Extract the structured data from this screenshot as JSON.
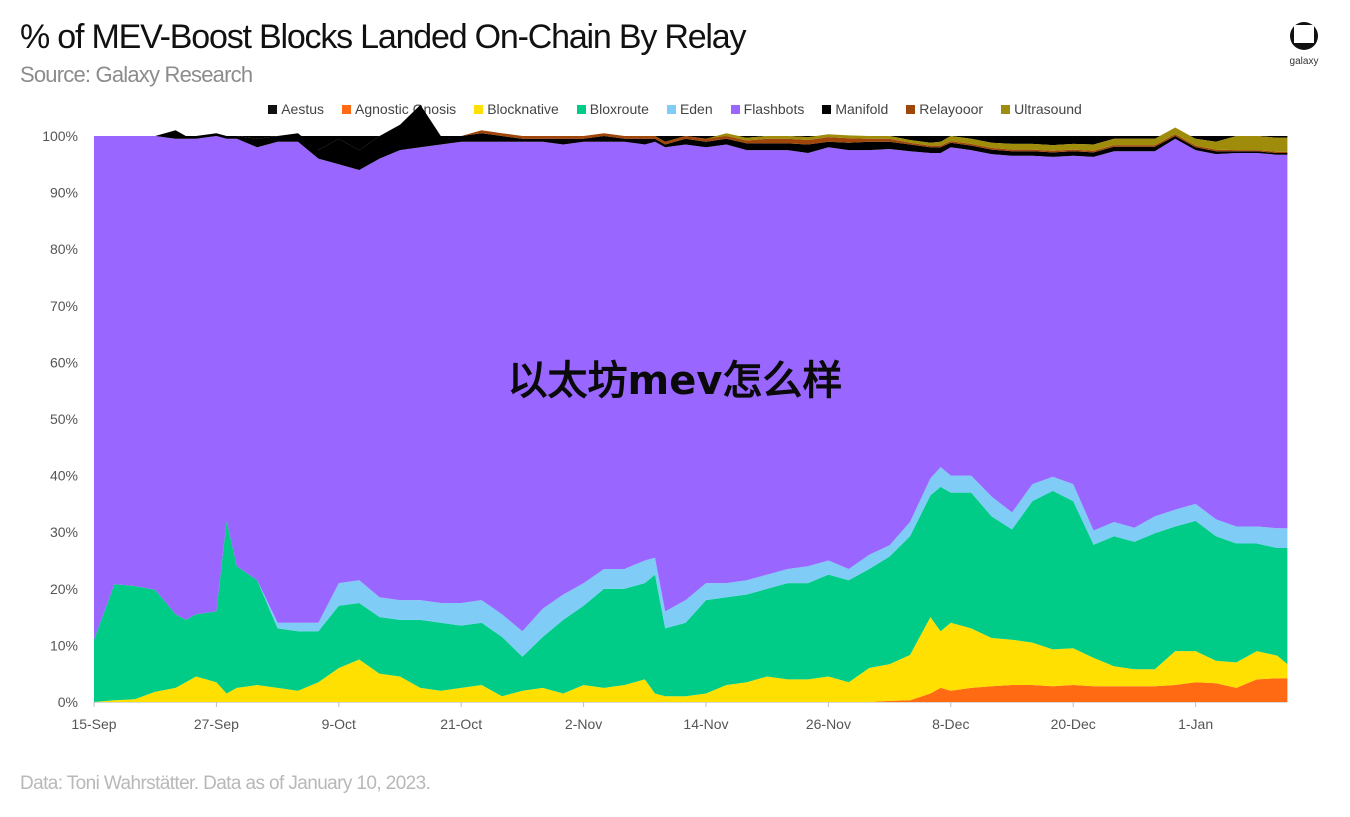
{
  "header": {
    "title": "% of MEV-Boost Blocks Landed On-Chain By Relay",
    "subtitle": "Source: Galaxy Research",
    "logo_text": "galaxy"
  },
  "footer": {
    "note": "Data:  Toni Wahrstätter. Data as of January 10, 2023."
  },
  "overlay": {
    "text": "以太坊mev怎么样"
  },
  "chart_data": {
    "type": "area",
    "stacked": true,
    "title": "% of MEV-Boost Blocks Landed On-Chain By Relay",
    "subtitle": "Source: Galaxy Research",
    "xlabel": "",
    "ylabel": "",
    "ylim": [
      0,
      100
    ],
    "yticks": [
      "0%",
      "10%",
      "20%",
      "30%",
      "40%",
      "50%",
      "60%",
      "70%",
      "80%",
      "90%",
      "100%"
    ],
    "xticks": [
      "15-Sep",
      "27-Sep",
      "9-Oct",
      "21-Oct",
      "2-Nov",
      "14-Nov",
      "26-Nov",
      "8-Dec",
      "20-Dec",
      "1-Jan"
    ],
    "xtick_days": [
      0,
      12,
      24,
      36,
      48,
      60,
      72,
      84,
      96,
      108
    ],
    "grid": false,
    "legend_position": "top",
    "x_days": [
      0,
      2,
      4,
      6,
      8,
      9,
      10,
      12,
      13,
      14,
      16,
      18,
      20,
      22,
      24,
      26,
      28,
      30,
      32,
      34,
      36,
      38,
      40,
      42,
      44,
      46,
      48,
      50,
      52,
      54,
      55,
      56,
      58,
      60,
      62,
      64,
      66,
      68,
      70,
      72,
      74,
      76,
      78,
      80,
      82,
      83,
      84,
      86,
      88,
      90,
      92,
      94,
      96,
      98,
      100,
      102,
      104,
      106,
      108,
      110,
      112,
      114,
      116,
      117
    ],
    "series": [
      {
        "name": "Agnostic Gnosis",
        "color": "#ff6a13",
        "values": [
          0,
          0,
          0,
          0,
          0,
          0,
          0,
          0,
          0,
          0,
          0,
          0,
          0,
          0,
          0,
          0,
          0,
          0,
          0,
          0,
          0,
          0,
          0,
          0,
          0,
          0,
          0,
          0,
          0,
          0,
          0,
          0,
          0,
          0,
          0,
          0,
          0,
          0,
          0,
          0,
          0,
          0,
          0.2,
          0.3,
          1.5,
          2.5,
          2,
          2.5,
          2.8,
          3,
          3,
          2.8,
          3,
          2.8,
          2.8,
          2.8,
          2.8,
          3,
          3.5,
          3.3,
          2.5,
          4,
          4.2,
          4.2
        ]
      },
      {
        "name": "Blocknative",
        "color": "#ffe000",
        "values": [
          0,
          0.3,
          0.5,
          1.8,
          2.5,
          3.5,
          4.5,
          3.5,
          1.5,
          2.5,
          3,
          2.5,
          2,
          3.5,
          6,
          7.5,
          5,
          4.5,
          2.5,
          2,
          2.5,
          3,
          1,
          2,
          2.5,
          1.5,
          3,
          2.5,
          3,
          4,
          1.5,
          1,
          1,
          1.5,
          3,
          3.5,
          4.5,
          4,
          4,
          4.5,
          3.5,
          6,
          6.5,
          8,
          13.5,
          10,
          12,
          10.5,
          8.5,
          8,
          7.5,
          6.5,
          6.5,
          5,
          3.5,
          3,
          3,
          6,
          5.5,
          4,
          4.5,
          5,
          4,
          2.5
        ]
      },
      {
        "name": "Bloxroute",
        "color": "#00cc88",
        "values": [
          11,
          20.5,
          20,
          18,
          13,
          11,
          11,
          12.5,
          30.5,
          21.5,
          18.5,
          10.5,
          10.5,
          9,
          11,
          10,
          10,
          10,
          12,
          12,
          11,
          11,
          10.5,
          6,
          9,
          13,
          14,
          17.5,
          17,
          17,
          21,
          12,
          13,
          16.5,
          15.5,
          15.5,
          15.5,
          17,
          17,
          18,
          18,
          17.5,
          19,
          21,
          21.5,
          25.5,
          23,
          24,
          21.5,
          19.5,
          25,
          28,
          26,
          20,
          23,
          22.5,
          24,
          22,
          23,
          22,
          21,
          19,
          19,
          20.5
        ]
      },
      {
        "name": "Eden",
        "color": "#7fccf7",
        "values": [
          0,
          0,
          0,
          0,
          0,
          0,
          0,
          0,
          0,
          0,
          0,
          1,
          1.5,
          1.5,
          4,
          4,
          3.5,
          3.5,
          3.5,
          3.5,
          4,
          4,
          4,
          4.5,
          5,
          4.5,
          4,
          3.5,
          3.5,
          4,
          3,
          3,
          4,
          3,
          2.5,
          2.5,
          2.5,
          2.5,
          3,
          2.5,
          2,
          2.5,
          2,
          2.5,
          3,
          3.5,
          3,
          3,
          3.5,
          3,
          3,
          2.5,
          3,
          2.5,
          2.5,
          2.5,
          3,
          3,
          3,
          3,
          3,
          3,
          3.5,
          3.5
        ]
      },
      {
        "name": "Flashbots",
        "color": "#9966ff",
        "values": [
          89,
          79.2,
          79.5,
          80.2,
          84,
          85,
          84,
          84,
          67.5,
          75.5,
          76.5,
          85,
          85,
          82,
          74,
          72.5,
          77.5,
          79.5,
          80,
          81,
          81.5,
          81,
          83.5,
          86.5,
          82.5,
          79.5,
          78,
          75.5,
          75.5,
          73.5,
          73.5,
          82,
          80.5,
          77,
          77.5,
          76,
          75,
          74,
          73,
          73,
          74,
          71.5,
          70,
          65.5,
          57.5,
          55.5,
          58,
          57.5,
          60.5,
          63,
          58,
          56.5,
          58,
          66,
          65.5,
          66.5,
          64.5,
          65.5,
          62.5,
          64.5,
          66,
          66,
          66,
          66
        ]
      },
      {
        "name": "Aestus",
        "color": "#111111",
        "values": [
          0,
          0,
          0,
          0,
          0,
          0,
          0,
          0,
          0,
          0,
          0,
          0,
          0,
          0,
          0,
          0,
          0,
          0,
          0,
          0,
          0,
          0,
          0,
          0,
          0,
          0,
          0,
          0,
          0,
          0,
          0,
          0,
          0,
          0,
          0,
          0,
          0,
          0,
          0,
          0,
          0,
          0,
          0,
          0,
          0,
          0,
          0,
          0,
          0,
          0,
          0,
          0,
          0,
          0,
          0,
          0,
          0,
          0,
          0,
          0,
          0,
          0,
          0,
          0
        ]
      },
      {
        "name": "Manifold",
        "color": "#000000",
        "values": [
          0,
          0,
          0,
          0,
          1.5,
          0.5,
          0.5,
          0.5,
          0.5,
          0.5,
          1.5,
          1,
          1.5,
          1.5,
          4.5,
          3.5,
          4,
          4.5,
          7.5,
          1.5,
          1,
          1.5,
          1,
          0.5,
          0.5,
          1,
          0.5,
          1,
          0.5,
          1,
          0.5,
          0.5,
          1,
          1,
          1,
          1.2,
          1.2,
          1.2,
          1.5,
          1,
          1.3,
          1.5,
          1.3,
          1.2,
          1,
          1,
          0.8,
          0.8,
          0.8,
          0.8,
          0.8,
          0.8,
          0.8,
          0.8,
          0.8,
          0.8,
          0.8,
          0.5,
          0.5,
          0.5,
          0.3,
          0.3,
          0.3,
          0.3
        ]
      },
      {
        "name": "Relayooor",
        "color": "#a0460a",
        "values": [
          0,
          0,
          0,
          0,
          0,
          0,
          0,
          0,
          0,
          0,
          0,
          0,
          0,
          0,
          0,
          0,
          0,
          0,
          0,
          0,
          0,
          0.5,
          0.5,
          0.5,
          0.5,
          0.5,
          0.5,
          0.5,
          0.5,
          0.5,
          0.5,
          0.5,
          0.5,
          0.5,
          0.5,
          0.5,
          0.8,
          0.8,
          0.8,
          0.8,
          0.8,
          0.5,
          0.5,
          0.3,
          0.3,
          0.3,
          0.3,
          0.3,
          0.3,
          0.3,
          0.3,
          0.3,
          0.3,
          0.3,
          0.3,
          0.3,
          0.3,
          0.3,
          0.3,
          0.3,
          0.2,
          0.2,
          0.2,
          0.2
        ]
      },
      {
        "name": "Ultrasound",
        "color": "#9e8c0a",
        "values": [
          0,
          0,
          0,
          0,
          0,
          0,
          0,
          0,
          0,
          0,
          0,
          0,
          0,
          0,
          0,
          0,
          0,
          0,
          0,
          0,
          0,
          0,
          0,
          0,
          0,
          0,
          0,
          0,
          0,
          0,
          0,
          0,
          0,
          0,
          0.5,
          0.5,
          0.5,
          0.5,
          0.5,
          0.5,
          0.5,
          0.5,
          0.5,
          0.5,
          0.5,
          0.7,
          0.9,
          0.9,
          0.9,
          1,
          1,
          1,
          1,
          1.1,
          1.1,
          1.1,
          1.1,
          1.2,
          1.2,
          1.4,
          2.5,
          2.5,
          2.5,
          2.5
        ]
      }
    ]
  },
  "legend": [
    {
      "name": "Aestus",
      "color": "#111111"
    },
    {
      "name": "Agnostic Gnosis",
      "color": "#ff6a13"
    },
    {
      "name": "Blocknative",
      "color": "#ffe000"
    },
    {
      "name": "Bloxroute",
      "color": "#00cc88"
    },
    {
      "name": "Eden",
      "color": "#7fccf7"
    },
    {
      "name": "Flashbots",
      "color": "#9966ff"
    },
    {
      "name": "Manifold",
      "color": "#000000"
    },
    {
      "name": "Relayooor",
      "color": "#a0460a"
    },
    {
      "name": "Ultrasound",
      "color": "#9e8c0a"
    }
  ]
}
